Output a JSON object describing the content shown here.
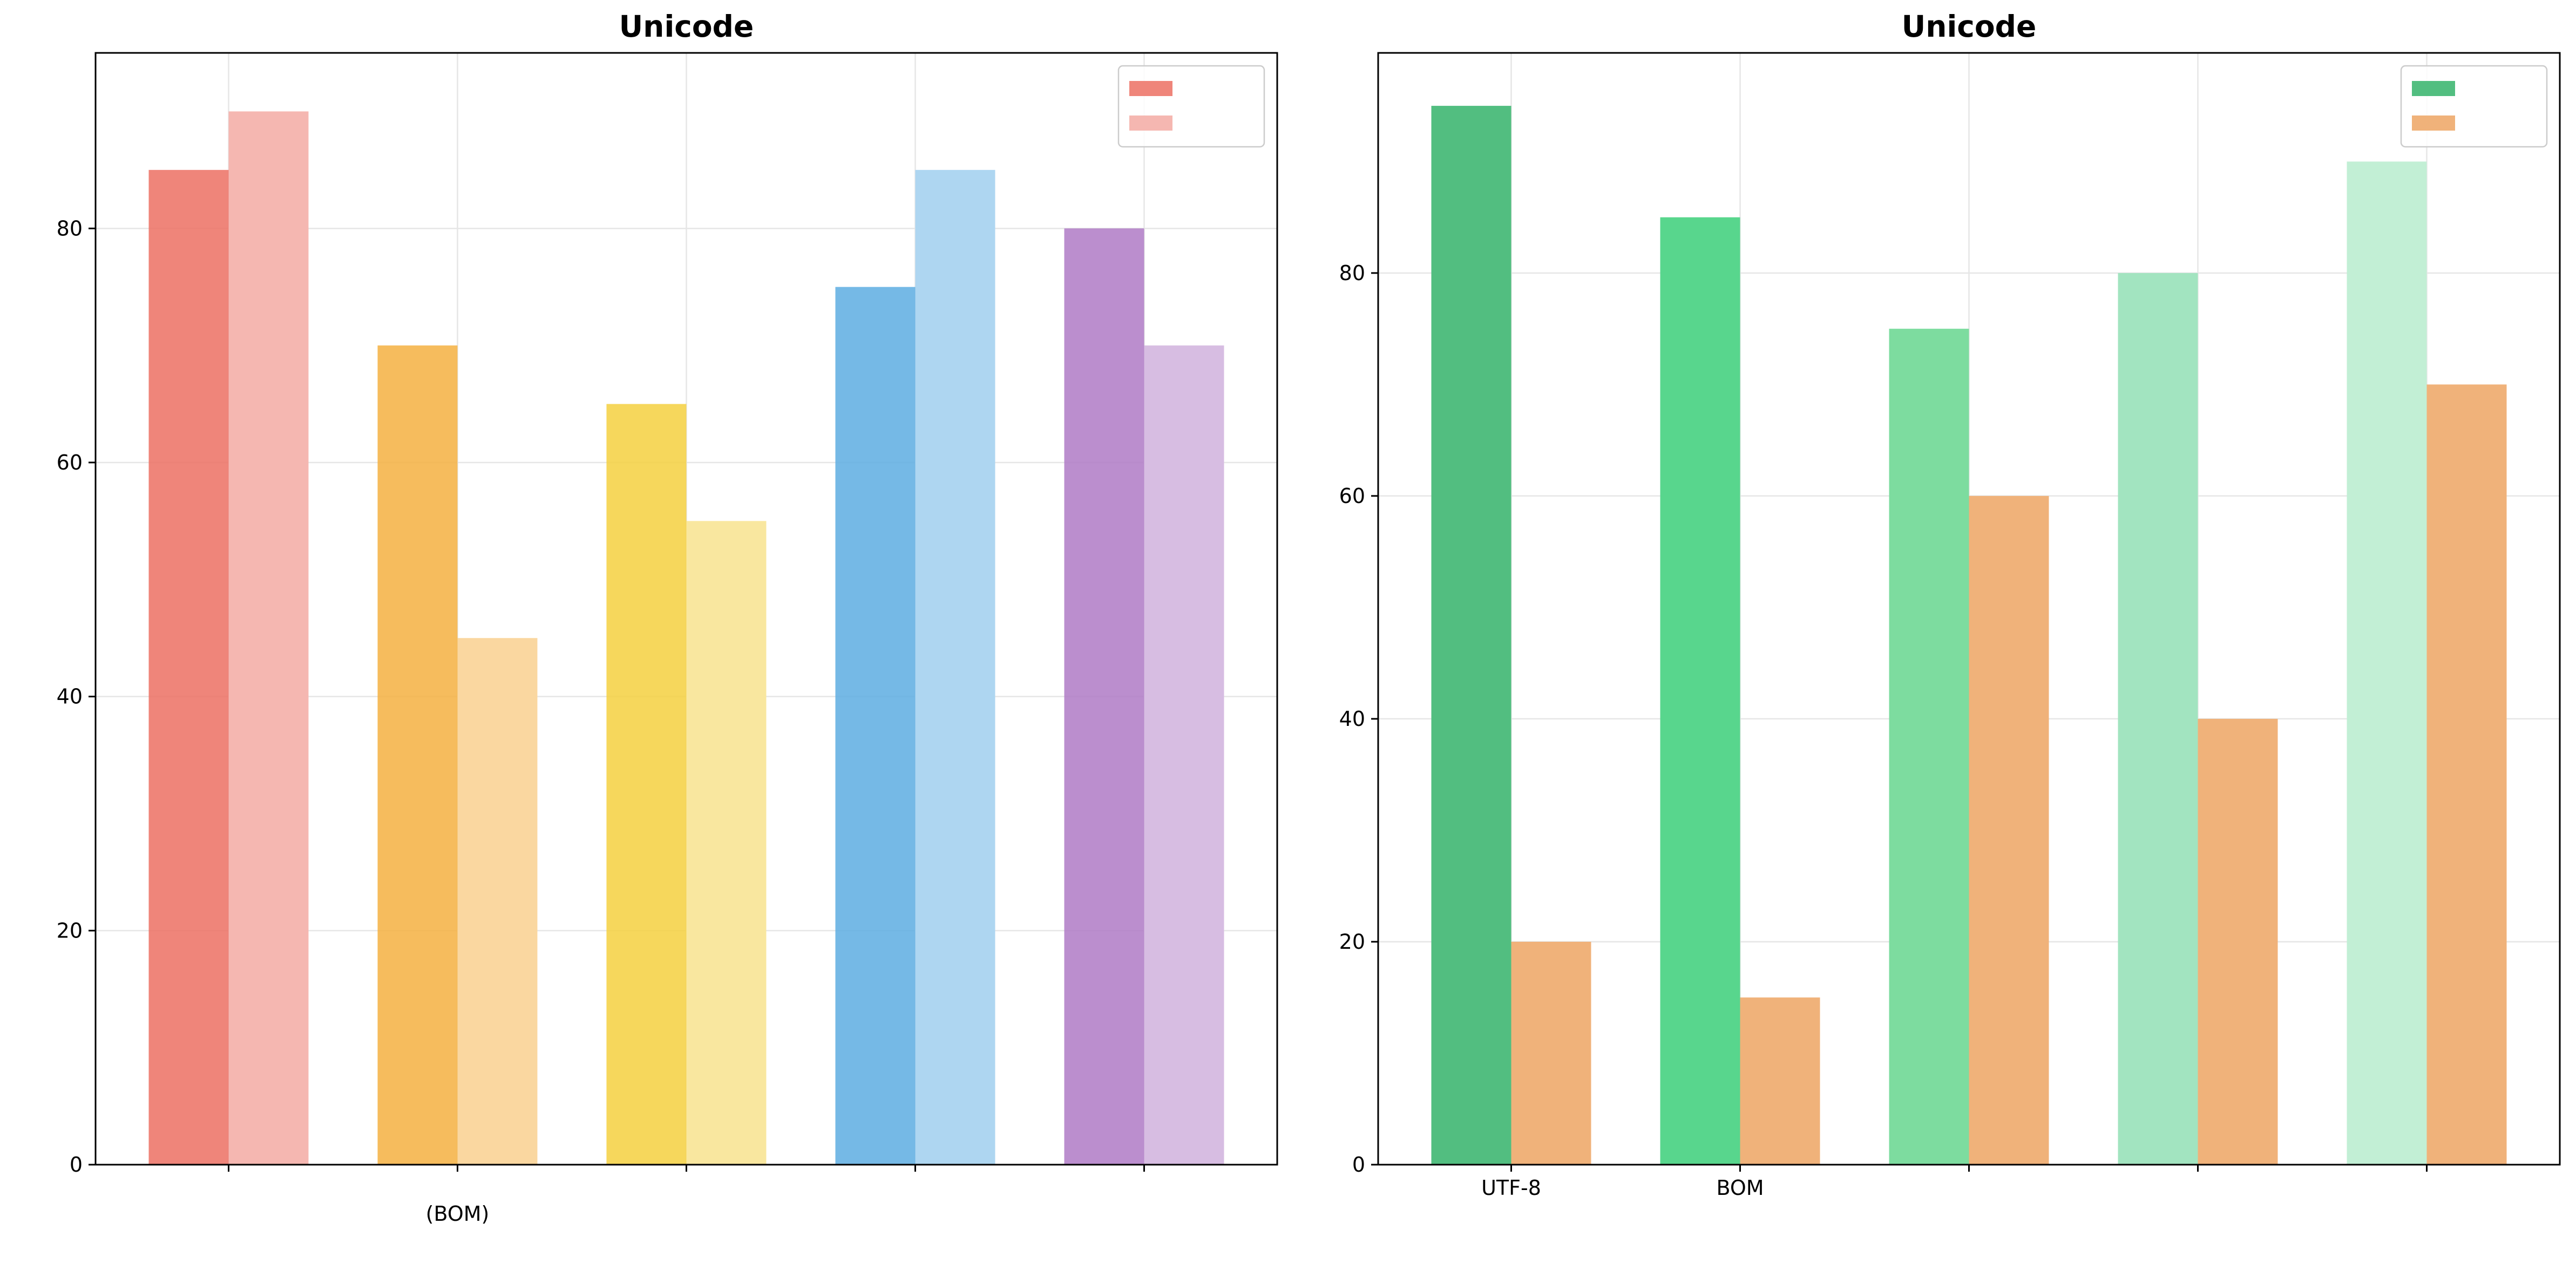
{
  "chart_data": [
    {
      "type": "bar",
      "title": "Unicode",
      "xlabel": "",
      "ylabel": "",
      "ylim": [
        0,
        95
      ],
      "yticks": [
        0,
        20,
        40,
        60,
        80
      ],
      "grid": true,
      "legend": "top-right",
      "categories": [
        "",
        "\n(BOM)",
        "\n",
        "\n",
        "\n"
      ],
      "series": [
        {
          "name": "",
          "values": [
            85,
            70,
            65,
            75,
            80
          ],
          "colors": [
            "#ec7063",
            "#f5b041",
            "#f4d03f",
            "#5dade2",
            "#af7ac5"
          ],
          "opacity": 0.85
        },
        {
          "name": "",
          "values": [
            90,
            45,
            55,
            85,
            70
          ],
          "colors": [
            "#f5b7b1",
            "#fad7a0",
            "#f9e79f",
            "#aed6f1",
            "#d7bde2"
          ],
          "opacity": 1.0
        }
      ]
    },
    {
      "type": "bar",
      "title": "Unicode",
      "xlabel": "",
      "ylabel": "",
      "ylim": [
        0,
        99.75
      ],
      "yticks": [
        0,
        20,
        40,
        60,
        80
      ],
      "grid": true,
      "legend": "top-right",
      "categories": [
        "UTF-8",
        "BOM",
        "\n",
        "\n",
        "\n"
      ],
      "series": [
        {
          "name": "",
          "values": [
            95,
            85,
            75,
            80,
            90
          ],
          "colors": [
            "#52be80",
            "#58d68d",
            "#7ddc9f",
            "#a2e4c0",
            "#c2efd5"
          ],
          "opacity": 1.0,
          "legend_color": "#52be80"
        },
        {
          "name": "",
          "values": [
            20,
            15,
            60,
            40,
            70
          ],
          "colors": [
            "#f0b27a",
            "#f0b27a",
            "#f0b27a",
            "#f0b27a",
            "#f0b27a"
          ],
          "opacity": 1.0
        }
      ]
    }
  ]
}
